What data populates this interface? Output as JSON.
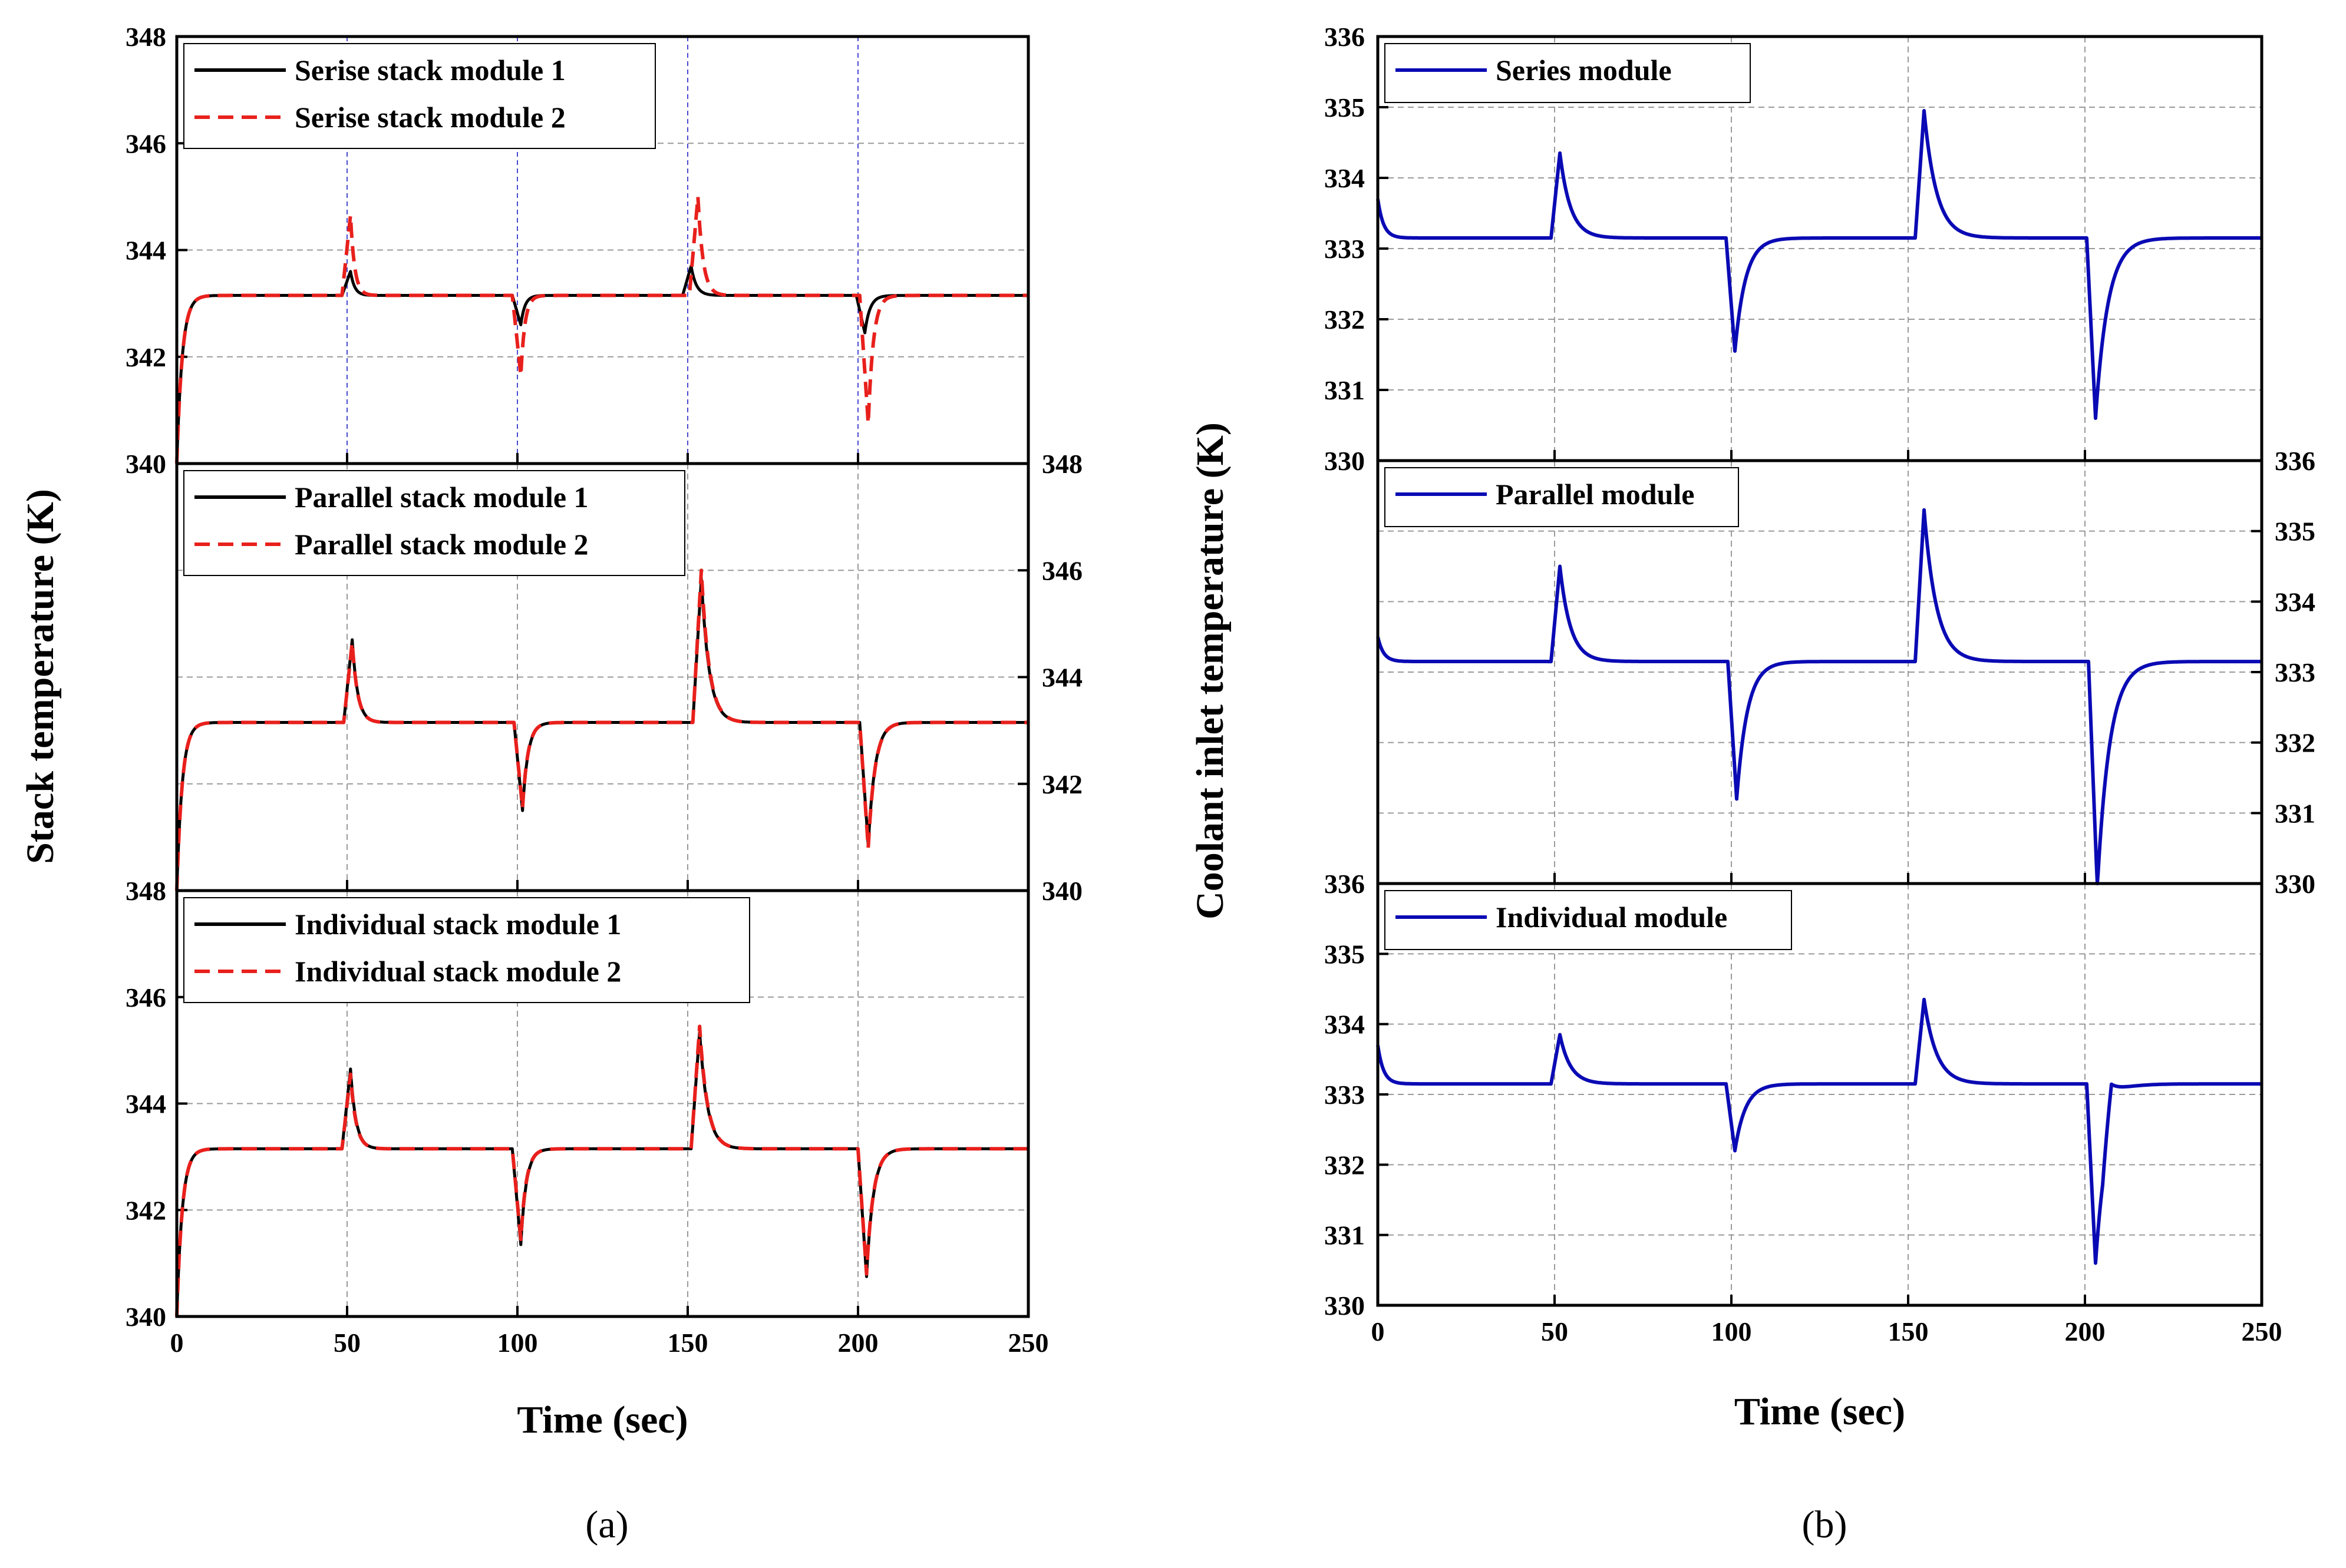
{
  "figure": {
    "captions": [
      "(a)",
      "(b)"
    ]
  },
  "colors": {
    "module1": "#000000",
    "module2": "#e8201c",
    "coolant": "#0a0ab4",
    "grid": "#9a9a9a",
    "vline": "#4a4ad0"
  },
  "chart_data": [
    {
      "id": "a",
      "type": "line",
      "xlabel": "Time (sec)",
      "ylabel": "Stack temperature (K)",
      "xlim": [
        0,
        250
      ],
      "x_ticks": [
        "0",
        "50",
        "100",
        "150",
        "200",
        "250"
      ],
      "panels": [
        {
          "name": "series",
          "ylim": [
            340,
            348
          ],
          "y_ticks": [
            "340",
            "342",
            "344",
            "346",
            "348"
          ],
          "y_axis_side": "left",
          "legend_position": "top-left",
          "step_lines": true,
          "series": [
            {
              "name": "Serise stack module 1",
              "style": "solid",
              "steady": 343.15,
              "start": 340.0,
              "events": [
                {
                  "t": 51,
                  "amp": 0.45,
                  "w": 1.2
                },
                {
                  "t": 101,
                  "amp": -0.55,
                  "w": 1.2
                },
                {
                  "t": 151,
                  "amp": 0.55,
                  "w": 1.5
                },
                {
                  "t": 202,
                  "amp": -0.7,
                  "w": 1.5
                }
              ]
            },
            {
              "name": "Serise stack module 2",
              "style": "dashed",
              "steady": 343.15,
              "start": 340.0,
              "events": [
                {
                  "t": 51,
                  "amp": 1.5,
                  "w": 1.2
                },
                {
                  "t": 101,
                  "amp": -1.5,
                  "w": 1.2
                },
                {
                  "t": 153,
                  "amp": 1.85,
                  "w": 1.5
                },
                {
                  "t": 203,
                  "amp": -2.4,
                  "w": 1.5
                }
              ]
            }
          ]
        },
        {
          "name": "parallel",
          "ylim": [
            340,
            348
          ],
          "y_ticks": [
            "340",
            "342",
            "344",
            "346",
            "348"
          ],
          "y_axis_side": "right",
          "legend_position": "top-left",
          "series": [
            {
              "name": "Parallel stack module 1",
              "style": "solid",
              "steady": 343.15,
              "start": 340.0,
              "events": [
                {
                  "t": 51.5,
                  "amp": 1.55,
                  "w": 1.6
                },
                {
                  "t": 101.5,
                  "amp": -1.65,
                  "w": 1.6
                },
                {
                  "t": 154,
                  "amp": 2.7,
                  "w": 2.3
                },
                {
                  "t": 203,
                  "amp": -2.3,
                  "w": 2.0
                }
              ]
            },
            {
              "name": "Parallel stack module 2",
              "style": "dashed",
              "steady": 343.15,
              "start": 340.0,
              "events": [
                {
                  "t": 51.5,
                  "amp": 1.5,
                  "w": 1.6
                },
                {
                  "t": 101.5,
                  "amp": -1.6,
                  "w": 1.6
                },
                {
                  "t": 154,
                  "amp": 2.85,
                  "w": 2.3
                },
                {
                  "t": 203,
                  "amp": -2.35,
                  "w": 2.0
                }
              ]
            }
          ]
        },
        {
          "name": "individual",
          "ylim": [
            340,
            348
          ],
          "y_ticks": [
            "340",
            "342",
            "344",
            "346",
            "348"
          ],
          "y_axis_side": "left",
          "legend_position": "top-left",
          "series": [
            {
              "name": "Individual  stack module 1",
              "style": "solid",
              "steady": 343.15,
              "start": 340.0,
              "events": [
                {
                  "t": 51,
                  "amp": 1.5,
                  "w": 1.6
                },
                {
                  "t": 101,
                  "amp": -1.8,
                  "w": 1.6
                },
                {
                  "t": 153.5,
                  "amp": 2.2,
                  "w": 2.3
                },
                {
                  "t": 202.5,
                  "amp": -2.4,
                  "w": 2.0
                }
              ]
            },
            {
              "name": "Individual  stack module 2",
              "style": "dashed",
              "steady": 343.15,
              "start": 340.0,
              "events": [
                {
                  "t": 51,
                  "amp": 1.4,
                  "w": 1.6
                },
                {
                  "t": 101,
                  "amp": -1.7,
                  "w": 1.6
                },
                {
                  "t": 153.5,
                  "amp": 2.3,
                  "w": 2.3
                },
                {
                  "t": 202.5,
                  "amp": -2.35,
                  "w": 2.0
                }
              ]
            }
          ]
        }
      ]
    },
    {
      "id": "b",
      "type": "line",
      "xlabel": "Time (sec)",
      "ylabel": "Coolant inlet temperature (K)",
      "xlim": [
        0,
        250
      ],
      "x_ticks": [
        "0",
        "50",
        "100",
        "150",
        "200",
        "250"
      ],
      "panels": [
        {
          "name": "series",
          "ylim": [
            330,
            336
          ],
          "y_ticks": [
            "330",
            "331",
            "332",
            "333",
            "334",
            "335",
            "336"
          ],
          "y_axis_side": "left",
          "legend_position": "top-left",
          "series": [
            {
              "name": "Series module",
              "style": "solid",
              "steady": 333.15,
              "start": 333.7,
              "events": [
                {
                  "t": 51.5,
                  "amp": 1.2,
                  "w": 3.0
                },
                {
                  "t": 101,
                  "amp": -1.6,
                  "w": 3.0
                },
                {
                  "t": 154.5,
                  "amp": 1.8,
                  "w": 3.5
                },
                {
                  "t": 203,
                  "amp": -2.55,
                  "w": 3.5
                }
              ]
            }
          ]
        },
        {
          "name": "parallel",
          "ylim": [
            330,
            336
          ],
          "y_ticks": [
            "330",
            "331",
            "332",
            "333",
            "334",
            "335",
            "336"
          ],
          "y_axis_side": "right",
          "legend_position": "top-left",
          "series": [
            {
              "name": "Parallel module",
              "style": "solid",
              "steady": 333.15,
              "start": 333.5,
              "events": [
                {
                  "t": 51.5,
                  "amp": 1.35,
                  "w": 3.0
                },
                {
                  "t": 101.5,
                  "amp": -1.95,
                  "w": 3.0
                },
                {
                  "t": 154.5,
                  "amp": 2.15,
                  "w": 3.5
                },
                {
                  "t": 203.5,
                  "amp": -3.2,
                  "w": 3.5
                }
              ]
            }
          ]
        },
        {
          "name": "individual",
          "ylim": [
            330,
            336
          ],
          "y_ticks": [
            "330",
            "331",
            "332",
            "333",
            "334",
            "335",
            "336"
          ],
          "y_axis_side": "left",
          "legend_position": "top-left",
          "series": [
            {
              "name": "Individual module",
              "style": "solid",
              "steady": 333.15,
              "start": 333.7,
              "events": [
                {
                  "t": 51.5,
                  "amp": 0.7,
                  "w": 3.0
                },
                {
                  "t": 101,
                  "amp": -0.95,
                  "w": 3.0
                },
                {
                  "t": 154.5,
                  "amp": 1.2,
                  "w": 3.5
                },
                {
                  "t": 203,
                  "amp": -2.55,
                  "w": 3.5
                },
                {
                  "t": 207.5,
                  "amp": 0.7,
                  "w": 3.0
                }
              ]
            }
          ]
        }
      ]
    }
  ]
}
